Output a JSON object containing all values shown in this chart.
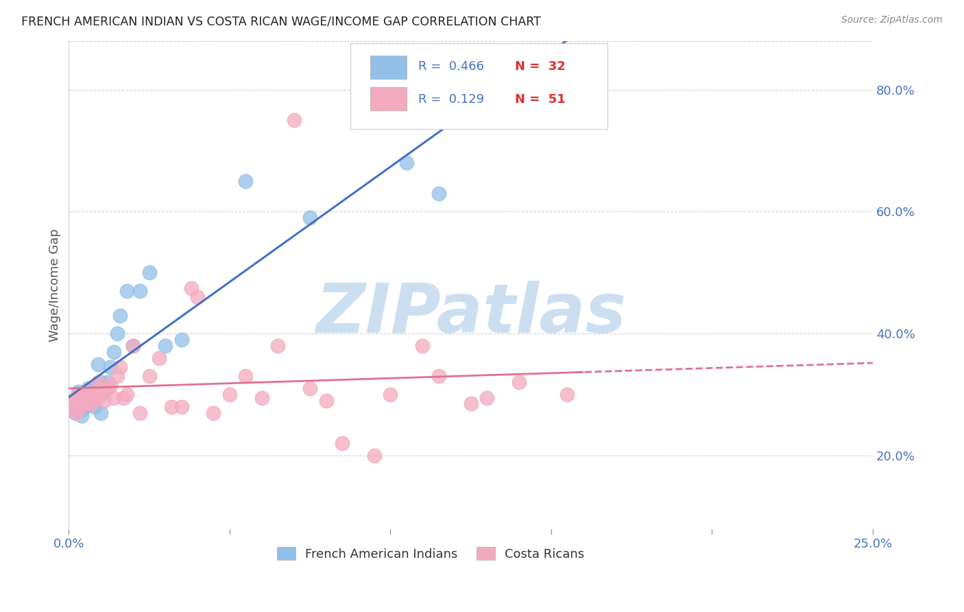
{
  "title": "FRENCH AMERICAN INDIAN VS COSTA RICAN WAGE/INCOME GAP CORRELATION CHART",
  "source": "Source: ZipAtlas.com",
  "ylabel": "Wage/Income Gap",
  "xlim": [
    0.0,
    0.25
  ],
  "ylim": [
    0.08,
    0.88
  ],
  "xticks": [
    0.0,
    0.05,
    0.1,
    0.15,
    0.2,
    0.25
  ],
  "xticklabels": [
    "0.0%",
    "",
    "",
    "",
    "",
    "25.0%"
  ],
  "yticks_right": [
    0.2,
    0.4,
    0.6,
    0.8
  ],
  "ytick_right_labels": [
    "20.0%",
    "40.0%",
    "60.0%",
    "80.0%"
  ],
  "blue_color": "#92C0E8",
  "pink_color": "#F4AABE",
  "blue_line_color": "#4472C4",
  "pink_line_color": "#E07090",
  "watermark": "ZIPatlas",
  "watermark_color": "#CCDFF0",
  "background_color": "#FFFFFF",
  "grid_color": "#D0D0D0",
  "blue_scatter_x": [
    0.001,
    0.002,
    0.003,
    0.003,
    0.004,
    0.004,
    0.005,
    0.005,
    0.006,
    0.006,
    0.007,
    0.008,
    0.008,
    0.009,
    0.01,
    0.01,
    0.011,
    0.012,
    0.013,
    0.014,
    0.015,
    0.016,
    0.018,
    0.02,
    0.022,
    0.025,
    0.03,
    0.035,
    0.055,
    0.075,
    0.105,
    0.115
  ],
  "blue_scatter_y": [
    0.285,
    0.27,
    0.295,
    0.305,
    0.265,
    0.275,
    0.28,
    0.3,
    0.31,
    0.285,
    0.295,
    0.31,
    0.28,
    0.35,
    0.27,
    0.32,
    0.305,
    0.32,
    0.345,
    0.37,
    0.4,
    0.43,
    0.47,
    0.38,
    0.47,
    0.5,
    0.38,
    0.39,
    0.65,
    0.59,
    0.68,
    0.63
  ],
  "pink_scatter_x": [
    0.001,
    0.002,
    0.002,
    0.003,
    0.003,
    0.004,
    0.004,
    0.005,
    0.005,
    0.006,
    0.006,
    0.007,
    0.007,
    0.008,
    0.008,
    0.009,
    0.009,
    0.01,
    0.011,
    0.012,
    0.013,
    0.014,
    0.015,
    0.016,
    0.017,
    0.018,
    0.02,
    0.022,
    0.025,
    0.028,
    0.032,
    0.035,
    0.038,
    0.04,
    0.045,
    0.05,
    0.055,
    0.06,
    0.065,
    0.075,
    0.08,
    0.085,
    0.095,
    0.1,
    0.11,
    0.115,
    0.125,
    0.13,
    0.14,
    0.155,
    0.07
  ],
  "pink_scatter_y": [
    0.285,
    0.27,
    0.295,
    0.275,
    0.3,
    0.285,
    0.3,
    0.295,
    0.305,
    0.285,
    0.295,
    0.285,
    0.295,
    0.3,
    0.295,
    0.32,
    0.295,
    0.305,
    0.29,
    0.31,
    0.315,
    0.295,
    0.33,
    0.345,
    0.295,
    0.3,
    0.38,
    0.27,
    0.33,
    0.36,
    0.28,
    0.28,
    0.475,
    0.46,
    0.27,
    0.3,
    0.33,
    0.295,
    0.38,
    0.31,
    0.29,
    0.22,
    0.2,
    0.3,
    0.38,
    0.33,
    0.285,
    0.295,
    0.32,
    0.3,
    0.75
  ]
}
